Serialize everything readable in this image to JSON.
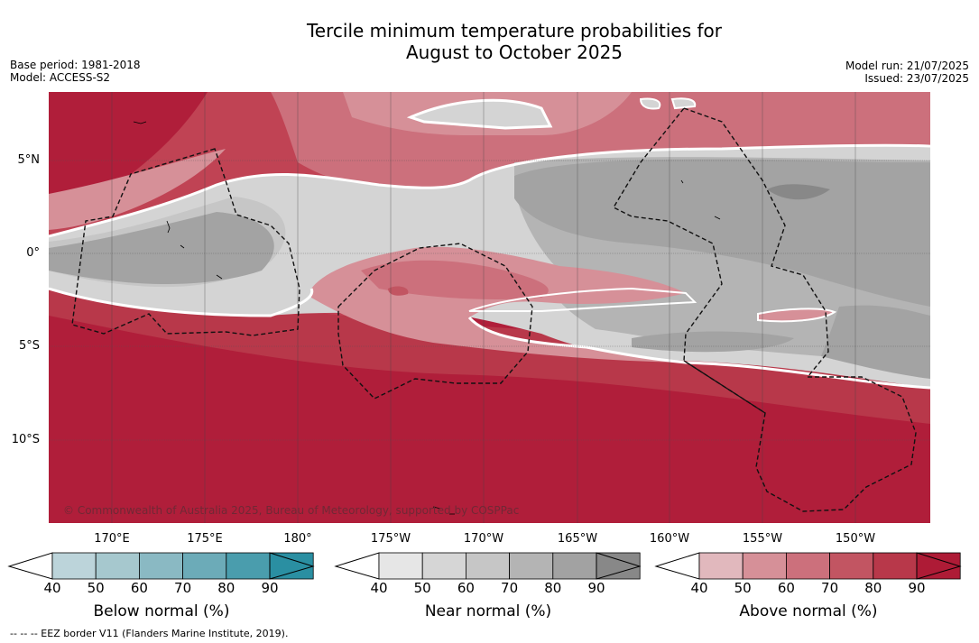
{
  "title_line1": "Tercile minimum temperature probabilities for",
  "title_line2": "August to October 2025",
  "meta_left": {
    "base_period": "Base period: 1981-2018",
    "model": "Model: ACCESS-S2"
  },
  "meta_right": {
    "model_run": "Model run: 21/07/2025",
    "issued": "Issued: 23/07/2025"
  },
  "lat_labels": [
    "5°N",
    "0°",
    "5°S",
    "10°S"
  ],
  "lon_labels": [
    "170°E",
    "175°E",
    "180°",
    "175°W",
    "170°W",
    "165°W",
    "160°W",
    "155°W",
    "150°W"
  ],
  "copyright": "© Commonwealth of Australia 2025, Bureau of Meteorology, supported by COSPPac",
  "footer": "--  --  -- EEZ border V11 (Flanders Marine Institute, 2019).",
  "colorbars": [
    {
      "title": "Below normal (%)",
      "ticks": [
        "40",
        "50",
        "60",
        "70",
        "80",
        "90"
      ],
      "colors": [
        "#bcd4da",
        "#a6c8ce",
        "#8ab9c3",
        "#6cabb8",
        "#4a9dad",
        "#2a8fa2"
      ]
    },
    {
      "title": "Near normal (%)",
      "ticks": [
        "40",
        "50",
        "60",
        "70",
        "80",
        "90"
      ],
      "colors": [
        "#e6e6e6",
        "#d6d6d6",
        "#c6c6c6",
        "#b4b4b4",
        "#a2a2a2",
        "#888888"
      ]
    },
    {
      "title": "Above normal (%)",
      "ticks": [
        "40",
        "50",
        "60",
        "70",
        "80",
        "90"
      ],
      "colors": [
        "#e1b8bd",
        "#d69098",
        "#cc707c",
        "#c25562",
        "#b8384a",
        "#ae1b36"
      ]
    }
  ],
  "palette": {
    "above_90": "#b01e3a",
    "near_dark": "#a3a3a3",
    "near_light": "#d4d4d4"
  }
}
